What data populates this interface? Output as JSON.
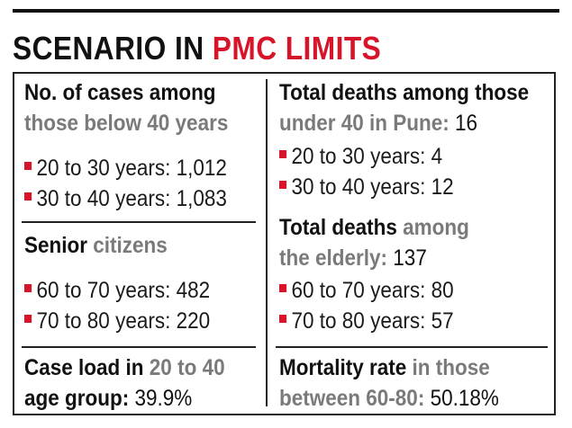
{
  "title": {
    "part1": "SCENARIO IN ",
    "part2": "PMC LIMITS"
  },
  "left": {
    "cases_heading": {
      "line1": "No. of cases among",
      "line2": "those below 40 years"
    },
    "cases_items": [
      {
        "label": "20 to 30 years: ",
        "value": "1,012"
      },
      {
        "label": "30 to 40 years: ",
        "value": "1,083"
      }
    ],
    "senior_heading": {
      "dark": "Senior ",
      "grey": "citizens"
    },
    "senior_items": [
      {
        "label": "60 to 70 years: ",
        "value": "482"
      },
      {
        "label": "70 to 80 years: ",
        "value": "220"
      }
    ],
    "caseload": {
      "dark1": "Case load in ",
      "grey1": "20 to 40",
      "dark2": "age group: ",
      "value": "39.9%"
    }
  },
  "right": {
    "deaths_heading": {
      "line1": "Total deaths among those",
      "grey2": "under 40 in Pune: ",
      "value": "16"
    },
    "deaths_items": [
      {
        "label": "20 to 30 years: ",
        "value": "4"
      },
      {
        "label": "30 to 40 years: ",
        "value": "12"
      }
    ],
    "elderly_heading": {
      "dark1": "Total deaths ",
      "grey1": "among",
      "grey2": "the elderly: ",
      "value": "137"
    },
    "elderly_items": [
      {
        "label": "60 to 70 years: ",
        "value": "80"
      },
      {
        "label": "70 to 80 years: ",
        "value": "57"
      }
    ],
    "mortality": {
      "dark1": "Mortality rate ",
      "grey1": "in those",
      "grey2": "between 60-80: ",
      "value": "50.18%"
    }
  },
  "colors": {
    "accent": "#d8142a",
    "heading_grey": "#7a7a7a",
    "text": "#111111"
  }
}
